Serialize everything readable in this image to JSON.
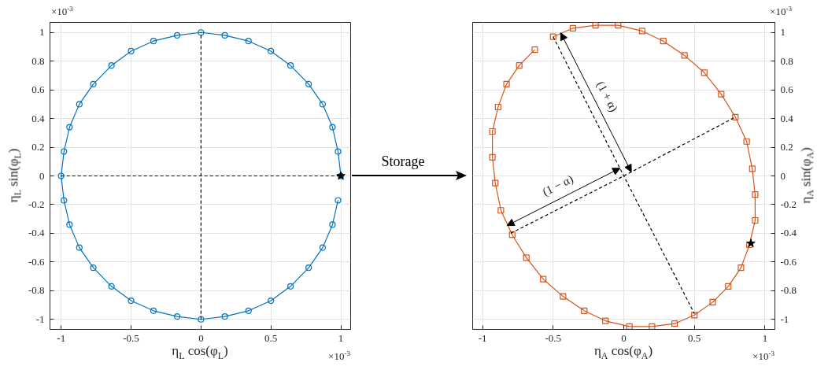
{
  "chart_data": [
    {
      "type": "line",
      "xlabel": "η$_{L}$ cos(φ$_{L}$)",
      "ylabel": "η$_{L}$ sin(φ$_{L}$)",
      "xlim": [
        -1.08,
        1.07
      ],
      "ylim": [
        -1.07,
        1.07
      ],
      "xticks": [
        -1,
        -0.5,
        0,
        0.5,
        1
      ],
      "yticks": [
        -1,
        -0.8,
        -0.6,
        -0.4,
        -0.2,
        0,
        0.2,
        0.4,
        0.6,
        0.8,
        1
      ],
      "grid": true,
      "annotations": [
        "×10$^{-3}$",
        "×10$^{-3}$",
        "Storage"
      ],
      "series": [
        {
          "color": "#0072bd",
          "marker": "circle",
          "x": [
            1,
            0.98,
            0.94,
            0.87,
            0.77,
            0.64,
            0.5,
            0.34,
            0.17,
            0,
            -0.17,
            -0.34,
            -0.5,
            -0.64,
            -0.77,
            -0.87,
            -0.94,
            -0.98,
            -1,
            -0.98,
            -0.94,
            -0.87,
            -0.77,
            -0.64,
            -0.5,
            -0.34,
            -0.17,
            0,
            0.17,
            0.34,
            0.5,
            0.64,
            0.77,
            0.87,
            0.94,
            0.98
          ],
          "values": [
            0,
            0.17,
            0.34,
            0.5,
            0.64,
            0.77,
            0.87,
            0.94,
            0.98,
            1,
            0.98,
            0.94,
            0.87,
            0.77,
            0.64,
            0.5,
            0.34,
            0.17,
            0,
            -0.17,
            -0.34,
            -0.5,
            -0.64,
            -0.77,
            -0.87,
            -0.94,
            -0.98,
            -1,
            -0.98,
            -0.94,
            -0.87,
            -0.77,
            -0.64,
            -0.5,
            -0.34,
            -0.17
          ]
        },
        {
          "color": "#000000",
          "line_style": "dashed",
          "marker": "none",
          "x": [
            -1,
            1
          ],
          "values": [
            0,
            0
          ]
        },
        {
          "color": "#000000",
          "line_style": "dashed",
          "marker": "none",
          "x": [
            0,
            0
          ],
          "values": [
            -1,
            1
          ]
        },
        {
          "type": "scatter",
          "color": "#000000",
          "marker": "star",
          "x": [
            1
          ],
          "values": [
            0
          ]
        }
      ]
    },
    {
      "type": "line",
      "xlabel": "η$_{A}$ cos(φ$_{A}$)",
      "y2label": "η$_{A}$ sin(φ$_{A}$)",
      "xlim": [
        -1.07,
        1.07
      ],
      "y2lim": [
        -1.07,
        1.07
      ],
      "xticks": [
        -1,
        -0.5,
        0,
        0.5,
        1
      ],
      "y2ticks": [
        -1,
        -0.8,
        -0.6,
        -0.4,
        -0.2,
        0,
        0.2,
        0.4,
        0.6,
        0.8,
        1
      ],
      "grid": true,
      "annotations": [
        "×10$^{-3}$",
        "×10$^{-3}$",
        "(1 + α)",
        "(1 − α)"
      ],
      "series": [
        {
          "color": "#d95319",
          "marker": "square",
          "axis": "y2",
          "x": [
            -0.5,
            -0.36,
            -0.2,
            -0.04,
            0.13,
            0.28,
            0.43,
            0.57,
            0.69,
            0.79,
            0.87,
            0.91,
            0.93,
            0.93,
            0.89,
            0.83,
            0.74,
            0.63,
            0.5,
            0.36,
            0.2,
            0.04,
            -0.13,
            -0.28,
            -0.43,
            -0.57,
            -0.69,
            -0.79,
            -0.87,
            -0.91,
            -0.93,
            -0.93,
            -0.89,
            -0.83,
            -0.74,
            -0.63
          ],
          "values": [
            0.97,
            1.03,
            1.05,
            1.05,
            1.01,
            0.94,
            0.84,
            0.72,
            0.57,
            0.41,
            0.24,
            0.05,
            -0.13,
            -0.31,
            -0.48,
            -0.64,
            -0.77,
            -0.88,
            -0.97,
            -1.03,
            -1.05,
            -1.05,
            -1.01,
            -0.94,
            -0.84,
            -0.72,
            -0.57,
            -0.41,
            -0.24,
            -0.05,
            0.13,
            0.31,
            0.48,
            0.64,
            0.77,
            0.88
          ]
        },
        {
          "color": "#000000",
          "line_style": "dashed",
          "marker": "none",
          "axis": "y2",
          "x": [
            -0.5,
            0,
            0.5
          ],
          "values": [
            0.97,
            0,
            -0.96
          ]
        },
        {
          "color": "#000000",
          "line_style": "dashed",
          "marker": "none",
          "axis": "y2",
          "x": [
            -0.8,
            0,
            0.79
          ],
          "values": [
            -0.4,
            0,
            0.41
          ]
        },
        {
          "type": "scatter",
          "color": "#000000",
          "marker": "star",
          "axis": "y2",
          "x": [
            0.9
          ],
          "values": [
            -0.47
          ]
        }
      ]
    }
  ]
}
